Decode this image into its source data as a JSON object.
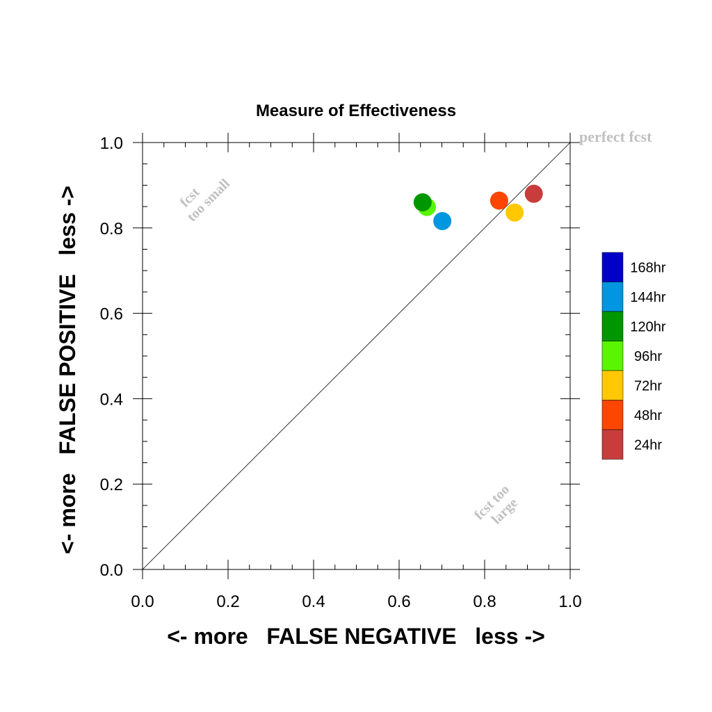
{
  "chart_data": {
    "type": "scatter",
    "title": "Measure of Effectiveness",
    "xlabel": "<- more   FALSE NEGATIVE   less ->",
    "ylabel": "<- more   FALSE POSITIVE   less ->",
    "xlim": [
      0.0,
      1.0
    ],
    "ylim": [
      0.0,
      1.0
    ],
    "x_ticks": [
      "0.0",
      "0.2",
      "0.4",
      "0.6",
      "0.8",
      "1.0"
    ],
    "y_ticks": [
      "0.0",
      "0.2",
      "0.4",
      "0.6",
      "0.8",
      "1.0"
    ],
    "grid": false,
    "reference_line": "diagonal y = x",
    "annotations": {
      "top_right": "perfect fcst",
      "upper_left_line1": "fcst",
      "upper_left_line2": "too small",
      "lower_right_line1": "fcst too",
      "lower_right_line2": "large"
    },
    "legend_position": "right",
    "series": [
      {
        "name": "168hr",
        "color": "#0000c8",
        "points": []
      },
      {
        "name": "144hr",
        "color": "#0096e0",
        "points": [
          [
            0.701,
            0.816
          ]
        ]
      },
      {
        "name": "120hr",
        "color": "#009600",
        "points": [
          [
            0.655,
            0.86
          ]
        ]
      },
      {
        "name": "96hr",
        "color": "#5af500",
        "points": [
          [
            0.665,
            0.849
          ]
        ]
      },
      {
        "name": "72hr",
        "color": "#ffc800",
        "points": [
          [
            0.87,
            0.836
          ]
        ]
      },
      {
        "name": "48hr",
        "color": "#ff4600",
        "points": [
          [
            0.834,
            0.864
          ]
        ]
      },
      {
        "name": "24hr",
        "color": "#c83c3c",
        "points": [
          [
            0.915,
            0.88
          ]
        ]
      }
    ],
    "draw_order": [
      "96hr",
      "120hr",
      "144hr",
      "72hr",
      "48hr",
      "24hr"
    ]
  }
}
